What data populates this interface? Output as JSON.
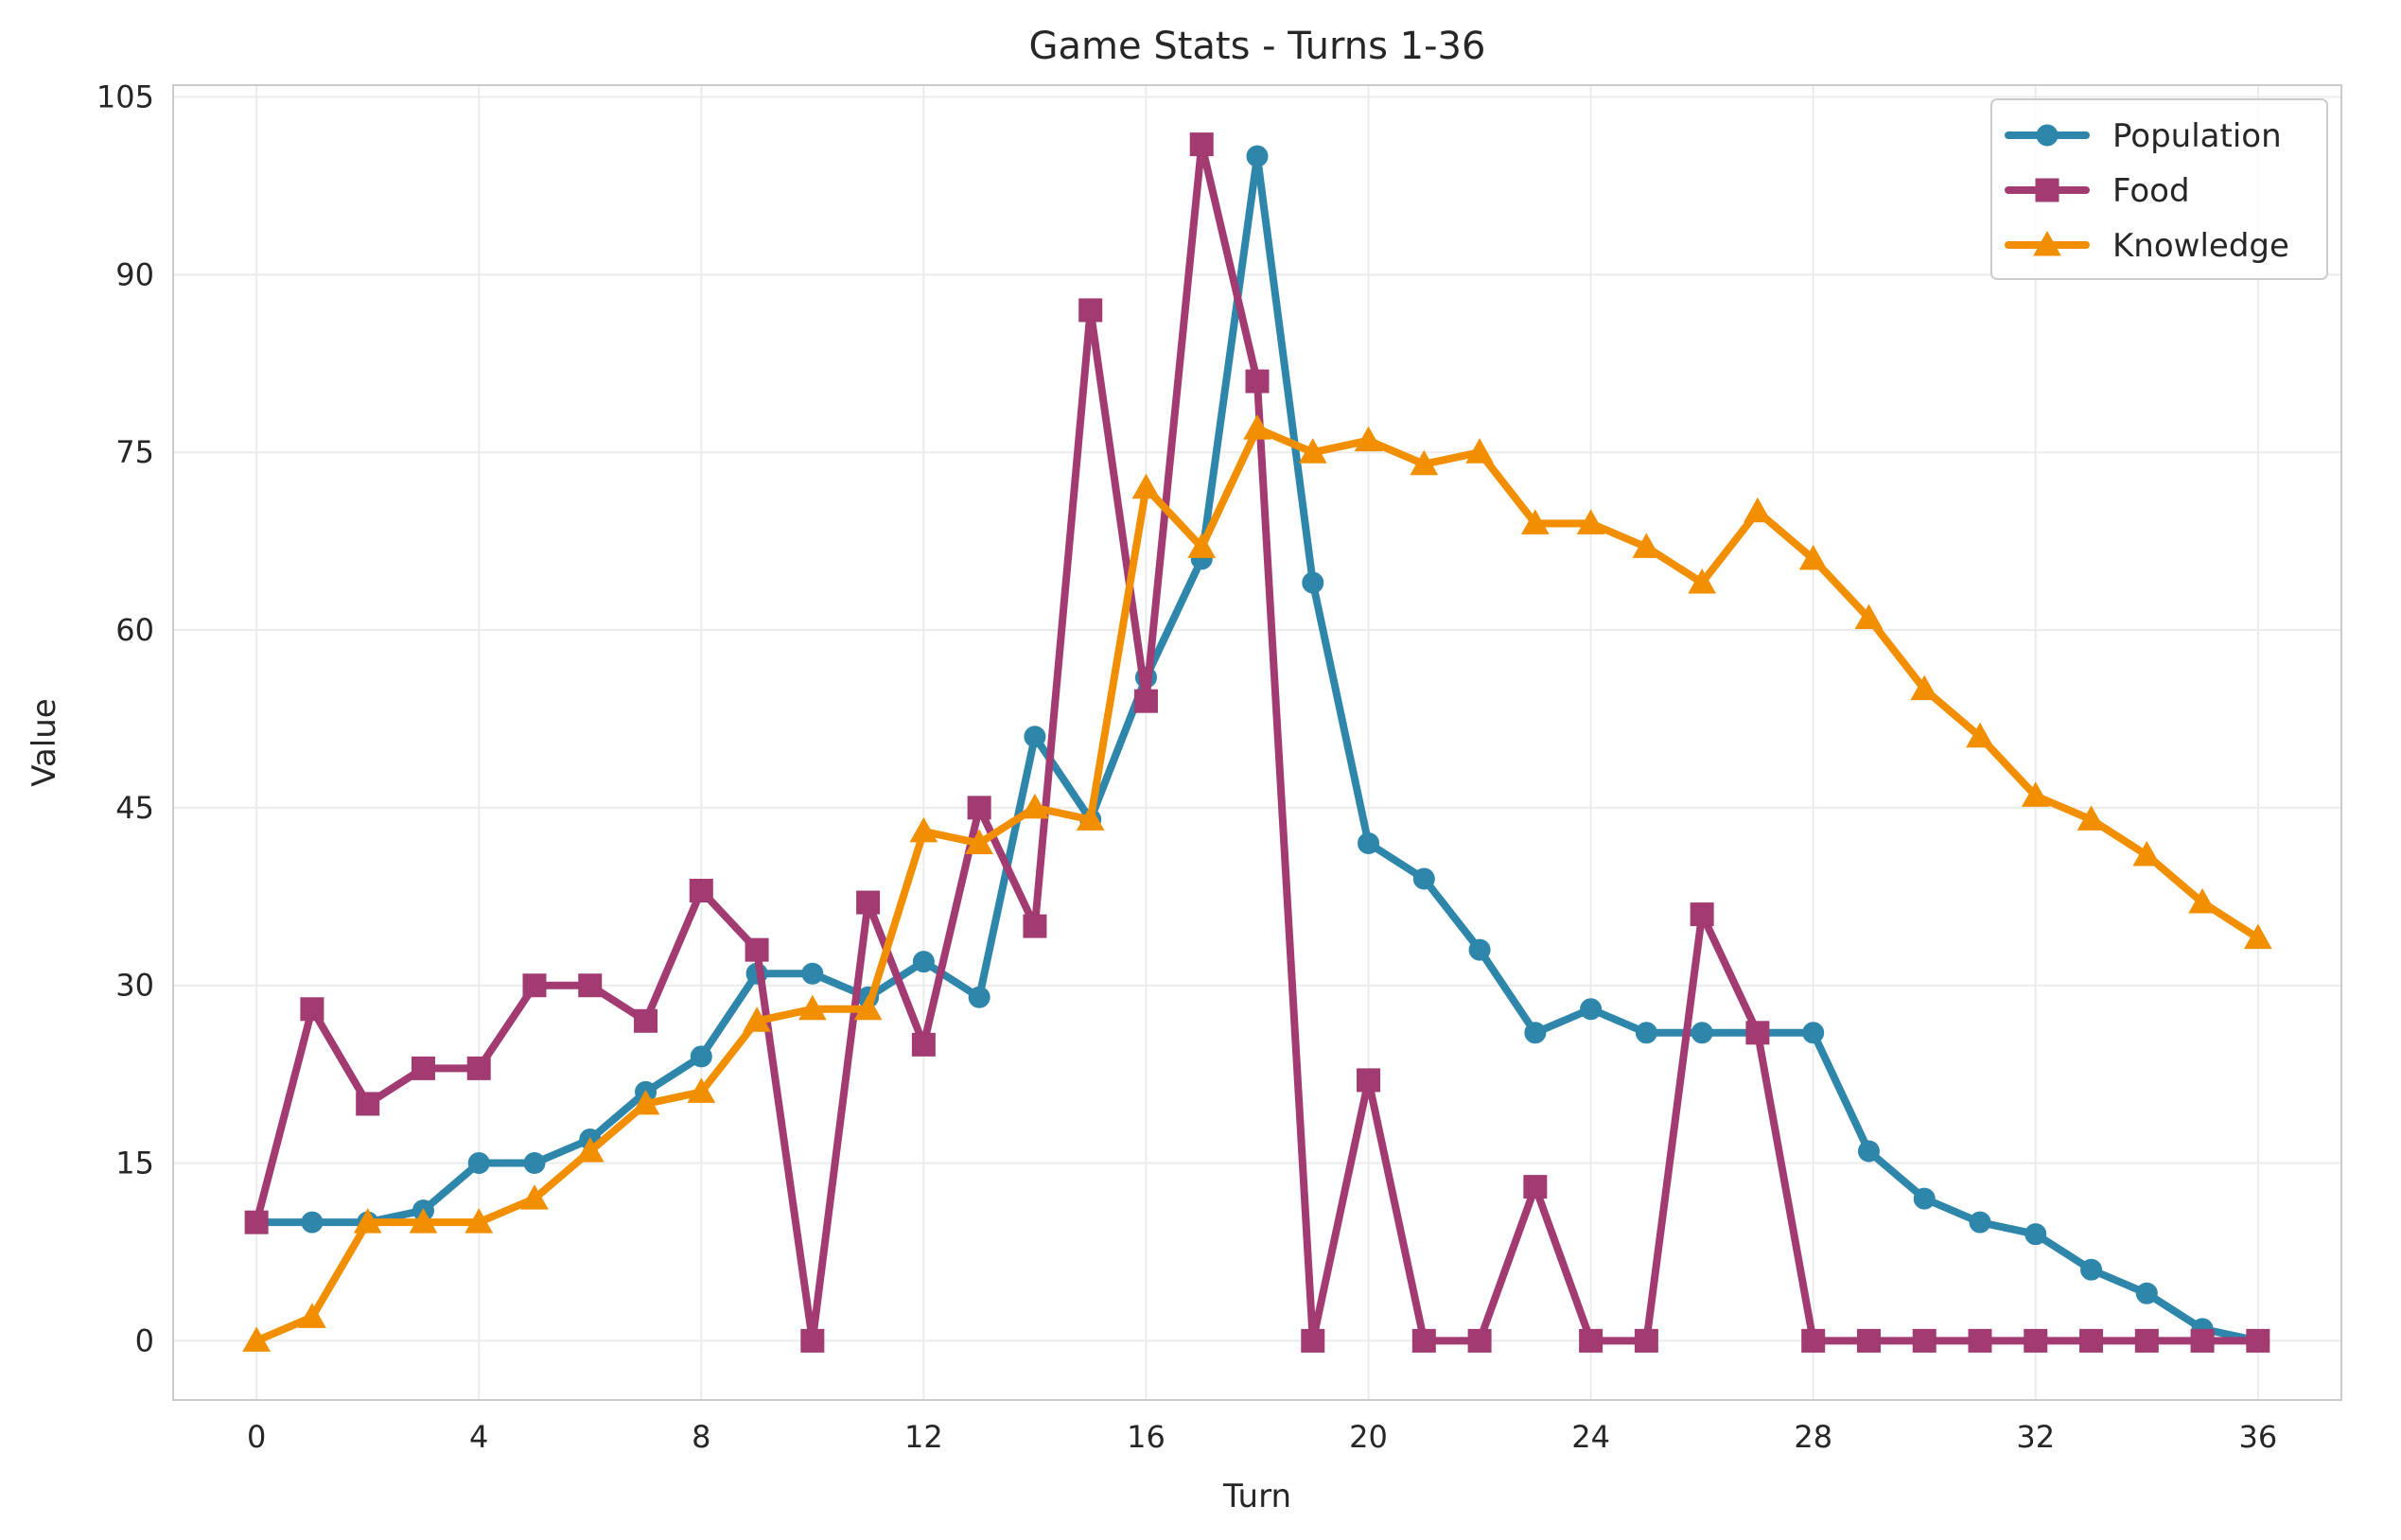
{
  "chart_data": {
    "type": "line",
    "title": "Game Stats - Turns 1-36",
    "xlabel": "Turn",
    "ylabel": "Value",
    "xlim": [
      -1.5,
      37.5
    ],
    "ylim": [
      -5,
      106
    ],
    "xticks": [
      0,
      4,
      8,
      12,
      16,
      20,
      24,
      28,
      32,
      36
    ],
    "yticks": [
      0,
      15,
      30,
      45,
      60,
      75,
      90,
      105
    ],
    "grid": true,
    "legend_position": "top-right",
    "x": [
      0,
      1,
      2,
      3,
      4,
      5,
      6,
      7,
      8,
      9,
      10,
      11,
      12,
      13,
      14,
      15,
      16,
      17,
      18,
      19,
      20,
      21,
      22,
      23,
      24,
      25,
      26,
      27,
      28,
      29,
      30,
      31,
      32,
      33,
      34,
      35,
      36
    ],
    "series": [
      {
        "name": "Population",
        "color": "#2e86ab",
        "marker": "circle",
        "values": [
          10,
          10,
          10,
          11,
          15,
          15,
          17,
          21,
          24,
          31,
          31,
          29,
          32,
          29,
          51,
          44,
          56,
          66,
          100,
          64,
          42,
          39,
          33,
          26,
          28,
          26,
          26,
          26,
          26,
          16,
          12,
          10,
          9,
          6,
          4,
          1,
          0
        ]
      },
      {
        "name": "Food",
        "color": "#a23b72",
        "marker": "square",
        "values": [
          10,
          28,
          20,
          23,
          23,
          30,
          30,
          27,
          38,
          33,
          0,
          37,
          25,
          45,
          35,
          87,
          54,
          101,
          81,
          0,
          22,
          0,
          0,
          13,
          0,
          0,
          36,
          26,
          0,
          0,
          0,
          0,
          0,
          0,
          0,
          0,
          0
        ]
      },
      {
        "name": "Knowledge",
        "color": "#f18f01",
        "marker": "triangle",
        "values": [
          0,
          2,
          10,
          10,
          10,
          12,
          16,
          20,
          21,
          27,
          28,
          28,
          43,
          42,
          45,
          44,
          72,
          67,
          77,
          75,
          76,
          74,
          75,
          69,
          69,
          67,
          64,
          70,
          66,
          61,
          55,
          51,
          46,
          44,
          41,
          37,
          34
        ]
      }
    ]
  }
}
